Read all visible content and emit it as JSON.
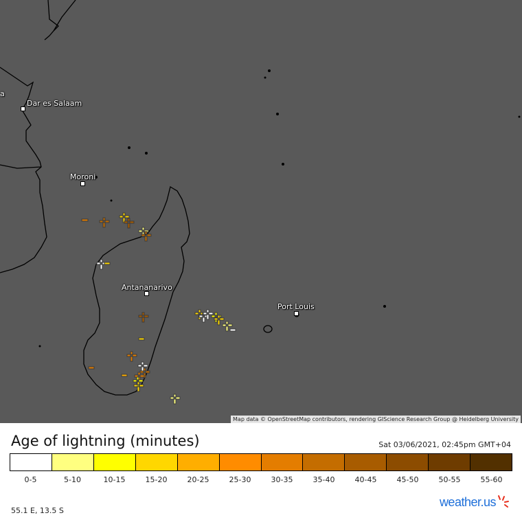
{
  "map": {
    "cities": [
      {
        "name": "Dar es Salaam",
        "key": "dar"
      },
      {
        "name": "Moroni",
        "key": "moroni"
      },
      {
        "name": "Antananarivo",
        "key": "tana"
      },
      {
        "name": "Port Louis",
        "key": "portlouis"
      }
    ],
    "edge_label": "a",
    "attribution": "Map data © OpenStreetMap contributors, rendering GIScience Research Group @ Heidelberg University"
  },
  "legend": {
    "title": "Age of lightning (minutes)",
    "timestamp": "Sat 03/06/2021, 02:45pm GMT+04",
    "bins": [
      {
        "label": "0-5",
        "color": "#ffffff"
      },
      {
        "label": "5-10",
        "color": "#ffff80"
      },
      {
        "label": "10-15",
        "color": "#ffff00"
      },
      {
        "label": "15-20",
        "color": "#ffd700"
      },
      {
        "label": "20-25",
        "color": "#ffae00"
      },
      {
        "label": "25-30",
        "color": "#ff8c00"
      },
      {
        "label": "30-35",
        "color": "#e47d00"
      },
      {
        "label": "35-40",
        "color": "#c46d00"
      },
      {
        "label": "40-45",
        "color": "#a85c00"
      },
      {
        "label": "45-50",
        "color": "#8c4c00"
      },
      {
        "label": "50-55",
        "color": "#6e3c00"
      },
      {
        "label": "55-60",
        "color": "#523000"
      }
    ]
  },
  "footer": {
    "coordinates": "55.1 E, 13.5 S",
    "logo_text": "weather.us"
  }
}
